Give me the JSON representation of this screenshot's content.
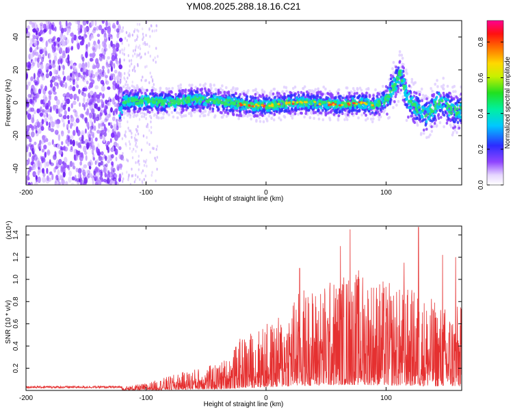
{
  "title": "YM08.2025.288.18.16.C21",
  "colors": {
    "snr_line": "#e53030",
    "axis": "#000000",
    "background": "#ffffff"
  },
  "chart_data": [
    {
      "type": "heatmap",
      "title": "YM08.2025.288.18.16.C21",
      "xlabel": "Height of straight line (km)",
      "ylabel": "Frequency (Hz)",
      "xlim": [
        -200,
        163
      ],
      "ylim": [
        -50,
        50
      ],
      "xticks": [
        -200,
        -100,
        0,
        100
      ],
      "xtick_labels": [
        "-200",
        "-100",
        "0",
        "100"
      ],
      "yticks": [
        -40,
        -20,
        0,
        20,
        40
      ],
      "ytick_labels": [
        "-40",
        "-20",
        "0",
        "20",
        "40"
      ],
      "colorbar": {
        "label": "Normalized spectral amplitude",
        "range": [
          0,
          0.92
        ],
        "ticks": [
          0,
          0.2,
          0.4,
          0.6,
          0.8
        ],
        "tick_labels": [
          "0.0",
          "0.2",
          "0.4",
          "0.6",
          "0.8"
        ]
      },
      "band_center": [
        [
          -120,
          1
        ],
        [
          -100,
          1
        ],
        [
          -80,
          0
        ],
        [
          -60,
          2
        ],
        [
          -40,
          1
        ],
        [
          -20,
          -1
        ],
        [
          0,
          -2
        ],
        [
          20,
          0
        ],
        [
          40,
          0
        ],
        [
          60,
          -1
        ],
        [
          80,
          0
        ],
        [
          90,
          -2
        ],
        [
          100,
          2
        ],
        [
          108,
          12
        ],
        [
          112,
          18
        ],
        [
          118,
          2
        ],
        [
          125,
          -3
        ],
        [
          135,
          -8
        ],
        [
          145,
          2
        ],
        [
          155,
          -5
        ],
        [
          163,
          -5
        ]
      ]
    },
    {
      "type": "line",
      "title": "",
      "xlabel": "Height of straight line (km)",
      "ylabel": "SNR (10 * v/v)",
      "y_scale_note": "(x10⁴)",
      "xlim": [
        -200,
        163
      ],
      "ylim": [
        0,
        1.48
      ],
      "xticks": [
        -200,
        -100,
        0,
        100
      ],
      "xtick_labels": [
        "-200",
        "-100",
        "0",
        "100"
      ],
      "yticks": [
        0.2,
        0.4,
        0.6,
        0.8,
        1.0,
        1.2,
        1.4
      ],
      "ytick_labels": [
        "0.2",
        "0.4",
        "0.6",
        "0.8",
        "1.0",
        "1.2",
        "1.4"
      ],
      "envelope": [
        [
          -200,
          0.03
        ],
        [
          -150,
          0.03
        ],
        [
          -120,
          0.03
        ],
        [
          -100,
          0.06
        ],
        [
          -80,
          0.12
        ],
        [
          -60,
          0.18
        ],
        [
          -40,
          0.22
        ],
        [
          -30,
          0.3
        ],
        [
          -20,
          0.45
        ],
        [
          -10,
          0.5
        ],
        [
          0,
          0.55
        ],
        [
          10,
          0.6
        ],
        [
          20,
          0.75
        ],
        [
          30,
          0.85
        ],
        [
          40,
          0.85
        ],
        [
          50,
          0.9
        ],
        [
          60,
          0.95
        ],
        [
          70,
          1.0
        ],
        [
          80,
          1.0
        ],
        [
          90,
          0.95
        ],
        [
          100,
          0.9
        ],
        [
          110,
          0.85
        ],
        [
          120,
          0.85
        ],
        [
          130,
          0.8
        ],
        [
          140,
          0.75
        ],
        [
          150,
          0.7
        ],
        [
          163,
          0.7
        ]
      ],
      "peaks": [
        [
          70,
          1.45
        ],
        [
          62,
          1.3
        ],
        [
          127,
          1.47
        ],
        [
          147,
          1.22
        ],
        [
          158,
          1.2
        ],
        [
          28,
          1.1
        ],
        [
          115,
          1.15
        ]
      ]
    }
  ]
}
